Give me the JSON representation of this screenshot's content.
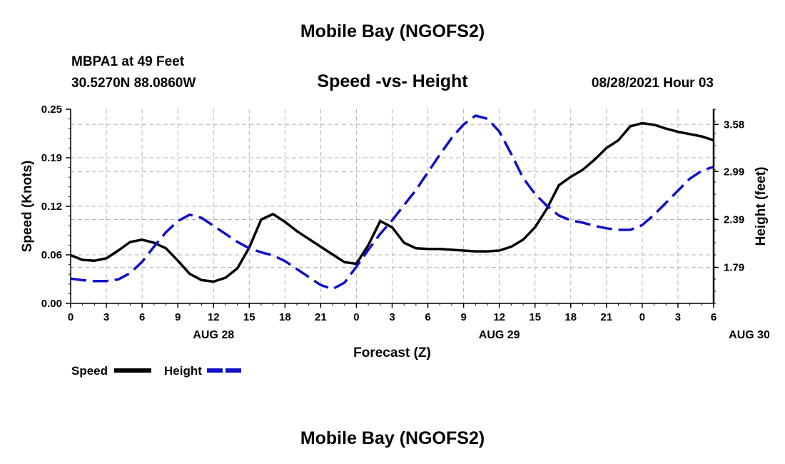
{
  "header": {
    "title": "Mobile Bay (NGOFS2)",
    "station": "MBPA1 at 49 Feet",
    "coords": "30.5270N  88.0860W",
    "subtitle": "Speed -vs- Height",
    "datetime": "08/28/2021 Hour 03"
  },
  "footer": {
    "title": "Mobile Bay (NGOFS2)"
  },
  "legend": {
    "speed_label": "Speed",
    "height_label": "Height"
  },
  "colors": {
    "speed": "#000000",
    "height": "#1010c8",
    "grid": "#b4b4b4"
  },
  "chart_data": {
    "type": "line",
    "xlabel": "Forecast (Z)",
    "ylabel_left": "Speed (Knots)",
    "ylabel_right": "Height (feet)",
    "x_ticks": [
      "0",
      "3",
      "6",
      "9",
      "12",
      "15",
      "18",
      "21",
      "0",
      "3",
      "6",
      "9",
      "12",
      "15",
      "18",
      "21",
      "0",
      "3",
      "6"
    ],
    "day_labels": [
      {
        "label": "AUG 28",
        "at_hour": 12
      },
      {
        "label": "AUG 29",
        "at_hour": 36
      },
      {
        "label": "AUG 30",
        "at_hour": 57
      }
    ],
    "xlim": [
      0,
      54
    ],
    "ylim_left": [
      0.0,
      0.25
    ],
    "ylim_right": [
      1.34,
      3.77
    ],
    "yticks_left": [
      "0.00",
      "0.06",
      "0.12",
      "0.19",
      "0.25"
    ],
    "yticks_right": [
      "1.79",
      "2.39",
      "2.99",
      "3.58"
    ],
    "grid": true,
    "series": [
      {
        "name": "Speed",
        "axis": "left",
        "style": "solid",
        "x": [
          0,
          1,
          2,
          3,
          4,
          5,
          6,
          7,
          8,
          9,
          10,
          11,
          12,
          13,
          14,
          15,
          16,
          17,
          18,
          19,
          20,
          21,
          22,
          23,
          24,
          25,
          26,
          27,
          28,
          29,
          30,
          31,
          32,
          33,
          34,
          35,
          36,
          37,
          38,
          39,
          40,
          41,
          42,
          43,
          44,
          45,
          46,
          47,
          48,
          49,
          50,
          51,
          52,
          53,
          54
        ],
        "values": [
          0.062,
          0.056,
          0.055,
          0.058,
          0.068,
          0.079,
          0.082,
          0.078,
          0.071,
          0.055,
          0.038,
          0.03,
          0.028,
          0.033,
          0.045,
          0.072,
          0.108,
          0.115,
          0.105,
          0.093,
          0.083,
          0.073,
          0.063,
          0.053,
          0.051,
          0.075,
          0.106,
          0.098,
          0.078,
          0.071,
          0.07,
          0.07,
          0.069,
          0.068,
          0.067,
          0.067,
          0.068,
          0.073,
          0.082,
          0.098,
          0.122,
          0.152,
          0.163,
          0.172,
          0.185,
          0.2,
          0.21,
          0.228,
          0.232,
          0.23,
          0.225,
          0.221,
          0.218,
          0.215,
          0.21
        ]
      },
      {
        "name": "Height",
        "axis": "right",
        "style": "dashed",
        "x": [
          0,
          1,
          2,
          3,
          4,
          5,
          6,
          7,
          8,
          9,
          10,
          11,
          12,
          13,
          14,
          15,
          16,
          17,
          18,
          19,
          20,
          21,
          22,
          23,
          24,
          25,
          26,
          27,
          28,
          29,
          30,
          31,
          32,
          33,
          34,
          35,
          36,
          37,
          38,
          39,
          40,
          41,
          42,
          43,
          44,
          45,
          46,
          47,
          48,
          49,
          50,
          51,
          52,
          53,
          54
        ],
        "values": [
          1.65,
          1.63,
          1.62,
          1.62,
          1.64,
          1.72,
          1.86,
          2.05,
          2.23,
          2.37,
          2.45,
          2.41,
          2.31,
          2.21,
          2.11,
          2.03,
          1.98,
          1.94,
          1.87,
          1.77,
          1.67,
          1.57,
          1.52,
          1.6,
          1.8,
          2.01,
          2.21,
          2.38,
          2.57,
          2.76,
          2.98,
          3.2,
          3.41,
          3.58,
          3.69,
          3.65,
          3.49,
          3.21,
          2.91,
          2.71,
          2.56,
          2.44,
          2.38,
          2.35,
          2.31,
          2.28,
          2.26,
          2.26,
          2.32,
          2.45,
          2.6,
          2.75,
          2.9,
          3.0,
          3.05
        ]
      }
    ]
  }
}
